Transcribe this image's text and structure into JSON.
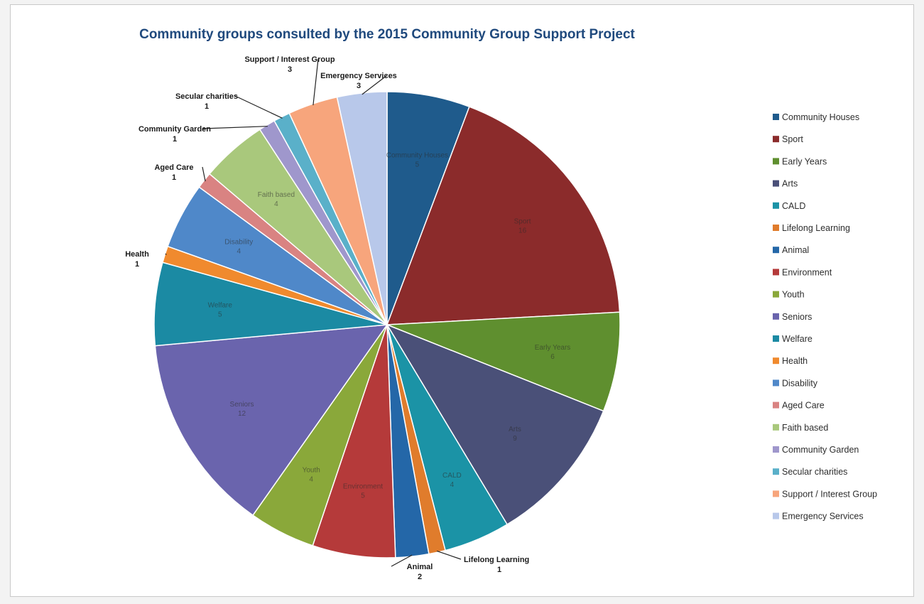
{
  "chart_data": {
    "type": "pie",
    "title": "Community groups consulted by the 2015 Community Group Support Project",
    "legend_position": "right",
    "series": [
      {
        "name": "Community Houses",
        "value": 5,
        "color": "#1f5b8c",
        "label_position": "inside",
        "label_text": "Community Houses"
      },
      {
        "name": "Sport",
        "value": 16,
        "color": "#8b2b2b",
        "label_position": "inside",
        "label_text": "Sport"
      },
      {
        "name": "Early Years",
        "value": 6,
        "color": "#5f8f2f",
        "label_position": "inside",
        "label_text": "Early Years"
      },
      {
        "name": "Arts",
        "value": 9,
        "color": "#4a5078",
        "label_position": "inside",
        "label_text": "Arts"
      },
      {
        "name": "CALD",
        "value": 4,
        "color": "#1b93a6",
        "label_position": "inside",
        "label_text": "CALD"
      },
      {
        "name": "Lifelong Learning",
        "value": 1,
        "color": "#e07c2c",
        "label_position": "outside",
        "label_text": "Lifelong Learning"
      },
      {
        "name": "Animal",
        "value": 2,
        "color": "#2467a8",
        "label_position": "outside",
        "label_text": "Animal"
      },
      {
        "name": "Environment",
        "value": 5,
        "color": "#b53a3a",
        "label_position": "inside",
        "label_text": "Environment"
      },
      {
        "name": "Youth",
        "value": 4,
        "color": "#8aa83a",
        "label_position": "inside",
        "label_text": "Youth"
      },
      {
        "name": "Seniors",
        "value": 12,
        "color": "#6a64ad",
        "label_position": "inside",
        "label_text": "Seniors"
      },
      {
        "name": "Welfare",
        "value": 5,
        "color": "#1b8aa3",
        "label_position": "inside",
        "label_text": "Welfare"
      },
      {
        "name": "Health",
        "value": 1,
        "color": "#f08a2e",
        "label_position": "outside",
        "label_text": "Health"
      },
      {
        "name": "Disability",
        "value": 4,
        "color": "#4f88c9",
        "label_position": "inside",
        "label_text": "Disability"
      },
      {
        "name": "Aged Care",
        "value": 1,
        "color": "#d98382",
        "label_position": "outside",
        "label_text": "Aged Care"
      },
      {
        "name": "Faith based",
        "value": 4,
        "color": "#a9c87c",
        "label_position": "inside",
        "label_text": "Faith based"
      },
      {
        "name": "Community Garden",
        "value": 1,
        "color": "#9f97cc",
        "label_position": "outside",
        "label_text": "Community Garden"
      },
      {
        "name": "Secular charities",
        "value": 1,
        "color": "#5ab0c9",
        "label_position": "outside",
        "label_text": "Secular charities"
      },
      {
        "name": "Support / Interest Group",
        "value": 3,
        "color": "#f7a57c",
        "label_position": "outside",
        "label_text": "Support / Interest Group"
      },
      {
        "name": "Emergency Services",
        "value": 3,
        "color": "#b8c8ea",
        "label_position": "outside",
        "label_text": "Emergency Services"
      }
    ]
  }
}
